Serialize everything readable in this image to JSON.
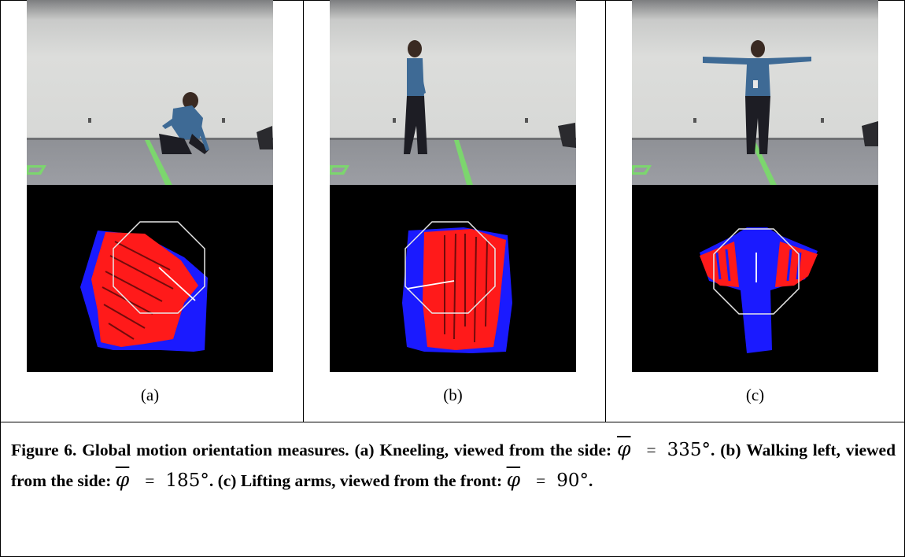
{
  "panels": [
    {
      "label": "(a)"
    },
    {
      "label": "(b)"
    },
    {
      "label": "(c)"
    }
  ],
  "caption": {
    "lead": "Figure 6. Global motion orientation measures.",
    "part_a_text": "(a) Kneeling, viewed from the side:",
    "part_a_value": "335",
    "part_b_text": "(b) Walking left, viewed from the side:",
    "part_b_value": "185",
    "part_c_text": "(c) Lifting arms, viewed from the front:",
    "part_c_value": "90",
    "symbol": "φ",
    "equals": "=",
    "degree": "°"
  },
  "colors": {
    "flow_red": "#ff1a1a",
    "flow_blue": "#1a1aff",
    "octagon": "#e8e8e8",
    "floor_stripe": "#7cd66e"
  }
}
